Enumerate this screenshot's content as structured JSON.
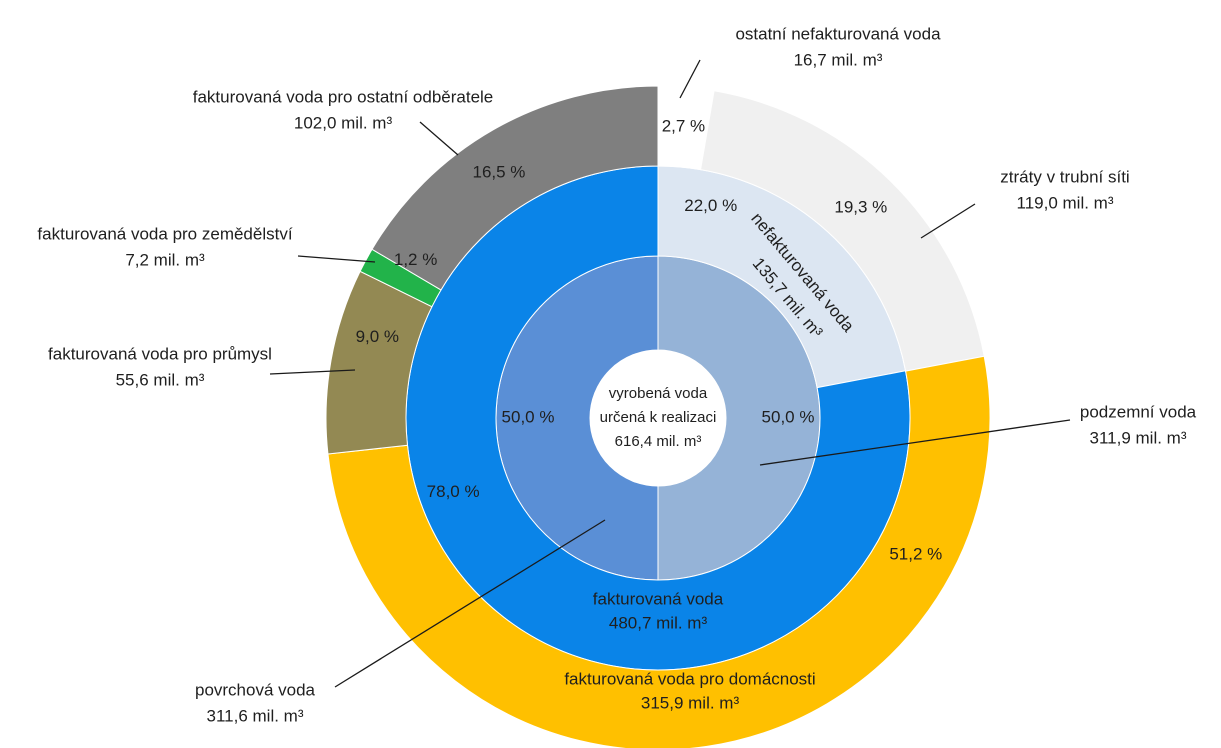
{
  "chart_data": {
    "type": "pie",
    "center": {
      "lines": [
        "vyrobená voda",
        "určená k realizaci",
        "616,4 mil. m³"
      ]
    },
    "rings": [
      {
        "name": "inner",
        "slices": [
          {
            "id": "podzemni",
            "value": 50.0,
            "pct_label": "50,0 %",
            "color": "#95b3d7",
            "label": "podzemní voda",
            "amount": "311,9 mil. m³"
          },
          {
            "id": "povrchova",
            "value": 50.0,
            "pct_label": "50,0 %",
            "color": "#5a8fd6",
            "label": "povrchová voda",
            "amount": "311,6 mil. m³"
          }
        ]
      },
      {
        "name": "middle",
        "slices": [
          {
            "id": "nefakturovana",
            "value": 22.0,
            "pct_label": "22,0 %",
            "color": "#dce6f2",
            "label": "nefakturovaná voda",
            "amount": "135,7 mil. m³"
          },
          {
            "id": "fakturovana",
            "value": 78.0,
            "pct_label": "78,0 %",
            "color": "#0a84e8",
            "label": "fakturovaná voda",
            "amount": "480,7 mil. m³"
          }
        ]
      },
      {
        "name": "outer",
        "slices": [
          {
            "id": "ostatni-nefakt",
            "value": 2.7,
            "pct_label": "2,7 %",
            "color": "#ffffff",
            "label": "ostatní nefakturovaná voda",
            "amount": "16,7 mil. m³"
          },
          {
            "id": "ztraty",
            "value": 19.3,
            "pct_label": "19,3 %",
            "color": "#f0f0f0",
            "label": "ztráty v trubní síti",
            "amount": "119,0 mil. m³"
          },
          {
            "id": "domacnosti",
            "value": 51.2,
            "pct_label": "51,2 %",
            "color": "#ffc000",
            "label": "fakturovaná voda pro domácnosti",
            "amount": "315,9 mil. m³"
          },
          {
            "id": "prumysl",
            "value": 9.0,
            "pct_label": "9,0 %",
            "color": "#938953",
            "label": "fakturovaná voda pro průmysl",
            "amount": "55,6 mil. m³"
          },
          {
            "id": "zemedelstvi",
            "value": 1.2,
            "pct_label": "1,2 %",
            "color": "#22b34a",
            "label": "fakturovaná voda pro zemědělství",
            "amount": "7,2 mil. m³"
          },
          {
            "id": "ostatni-odberatele",
            "value": 16.5,
            "pct_label": "16,5 %",
            "color": "#7f7f7f",
            "label": "fakturovaná voda pro ostatní odběratele",
            "amount": "102,0 mil. m³"
          }
        ]
      }
    ]
  }
}
